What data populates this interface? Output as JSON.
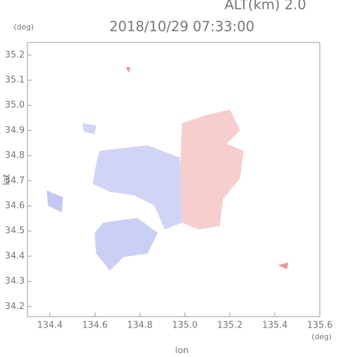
{
  "chart_data": {
    "type": "map",
    "altitude_label": "ALT(km)  2.0",
    "title": "2018/10/29 07:33:00",
    "y_unit": "(deg)",
    "x_unit": "(deg)",
    "xlabel": "lon",
    "ylabel": "lat",
    "xlim": [
      134.3,
      135.6
    ],
    "xticks": [
      134.4,
      134.6,
      134.8,
      {
        "value": 135,
        "label": "135.0"
      },
      135.2,
      135.4,
      135.6
    ],
    "ylim": [
      34.16,
      35.25
    ],
    "yticks": [
      34.2,
      34.3,
      34.4,
      34.5,
      34.6,
      34.7,
      34.8,
      34.9,
      {
        "value": 35,
        "label": "35.0"
      },
      35.1,
      35.2
    ]
  }
}
